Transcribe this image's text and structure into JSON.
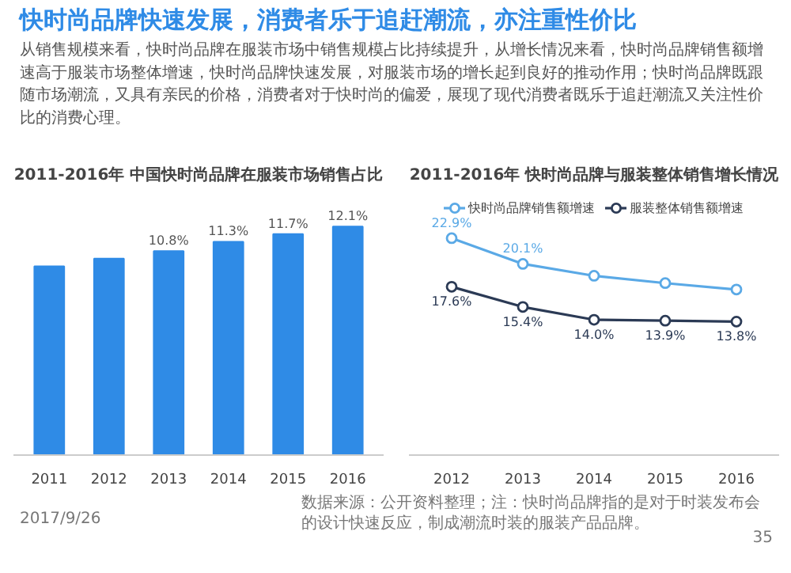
{
  "chart_data": [
    {
      "type": "other",
      "title": "快时尚品牌快速发展，消费者乐于追赶潮流，亦注重性价比",
      "annotations": [
        "从销售规模来看，快时尚品牌在服装市场中销售规模占比持续提升，从增长情况来看，快时尚品牌销售额增速高于服装市场整体增速，快时尚品牌快速发展，对服装市场的增长起到良好的推动作用；快时尚品牌既跟随市场潮流，又具有亲民的价格，消费者对于快时尚的偏爱，展现了现代消费者既乐于追赶潮流又关注性价比的消费心理。"
      ]
    },
    {
      "type": "bar",
      "title": "2011-2016年 中国快时尚品牌在服装市场销售占比",
      "categories": [
        "2011",
        "2012",
        "2013",
        "2014",
        "2015",
        "2016"
      ],
      "values": [
        10.0,
        10.4,
        10.8,
        11.3,
        11.7,
        12.1
      ],
      "value_labels": [
        null,
        null,
        "10.8%",
        "11.3%",
        "11.7%",
        "12.1%"
      ],
      "color": "#2f8be6"
    },
    {
      "type": "line",
      "title": "2011-2016年 快时尚品牌与服装整体销售增长情况",
      "categories": [
        "2012",
        "2013",
        "2014",
        "2015",
        "2016"
      ],
      "marker": "circle",
      "legend": "top",
      "series": [
        {
          "name": "快时尚品牌销售额增速",
          "color": "#5aa9e6",
          "values": [
            22.9,
            20.1,
            18.8,
            18.0,
            17.3
          ],
          "value_labels": [
            "22.9%",
            "20.1%",
            null,
            null,
            null
          ]
        },
        {
          "name": "服装整体销售额增速",
          "color": "#2b3a55",
          "values": [
            17.6,
            15.4,
            14.0,
            13.9,
            13.8
          ],
          "value_labels": [
            "17.6%",
            "15.4%",
            "14.0%",
            "13.9%",
            "13.8%"
          ]
        }
      ]
    },
    {
      "type": "other",
      "annotations": [
        "2017/9/26",
        "数据来源：公开资料整理；注：快时尚品牌指的是对于时装发布会的设计快速反应，制成潮流时装的服装产品品牌。",
        "35"
      ]
    }
  ]
}
